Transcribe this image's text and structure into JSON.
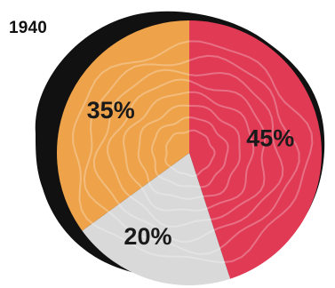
{
  "chart_data": {
    "type": "pie",
    "title": "1940",
    "slices": [
      {
        "value": 45,
        "label": "45%",
        "color": "#e03a55"
      },
      {
        "value": 20,
        "label": "20%",
        "color": "#d9d9d9"
      },
      {
        "value": 35,
        "label": "35%",
        "color": "#eea24a"
      }
    ],
    "start": "12 o'clock",
    "direction": "clockwise",
    "rim_color": "#111111",
    "ring_texture_color": "#ffffff"
  }
}
